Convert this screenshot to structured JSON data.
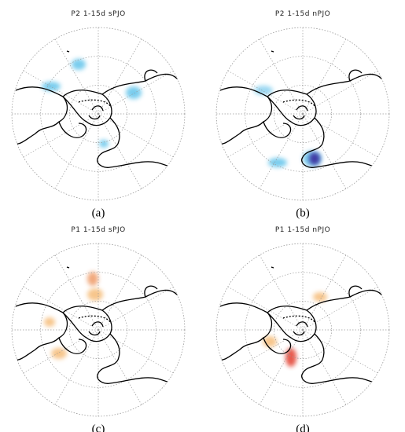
{
  "panels": [
    {
      "title": "P2 1-15d sPJO",
      "caption": "(a)"
    },
    {
      "title": "P2 1-15d nPJO",
      "caption": "(b)"
    },
    {
      "title": "P1 1-15d sPJO",
      "caption": "(c)"
    },
    {
      "title": "P1 1-15d nPJO",
      "caption": "(d)"
    }
  ]
}
